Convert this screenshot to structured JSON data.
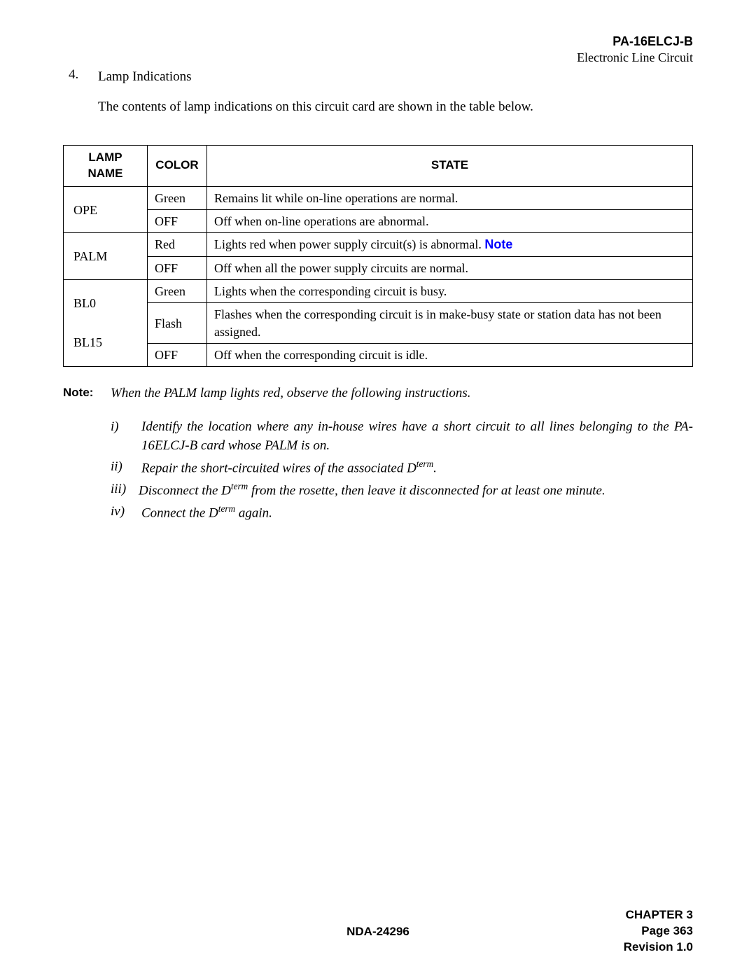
{
  "header": {
    "title": "PA-16ELCJ-B",
    "subtitle": "Electronic Line Circuit"
  },
  "section": {
    "number": "4.",
    "title": "Lamp Indications",
    "intro": "The contents of lamp indications on this circuit card are shown in the table below."
  },
  "table": {
    "columns": [
      "LAMP NAME",
      "COLOR",
      "STATE"
    ],
    "rows": [
      {
        "name": "OPE",
        "rowspan": 2,
        "color": "Green",
        "state": "Remains lit while on-line operations are normal."
      },
      {
        "color": "OFF",
        "state": "Off when on-line operations are abnormal."
      },
      {
        "name": "PALM",
        "rowspan": 2,
        "color": "Red",
        "state_prefix": "Lights red when power supply circuit(s) is abnormal. ",
        "state_link": "Note"
      },
      {
        "color": "OFF",
        "state": "Off when all the power supply circuits are normal."
      },
      {
        "name_l1": "BL0",
        "name_l2": "  ",
        "name_l3": "BL15",
        "rowspan": 3,
        "color": "Green",
        "state": "Lights when the corresponding circuit is busy."
      },
      {
        "color": "Flash",
        "state": "Flashes when the corresponding circuit is in make-busy state or station data has not been assigned."
      },
      {
        "color": "OFF",
        "state": "Off when the corresponding circuit is idle."
      }
    ]
  },
  "note": {
    "label": "Note:",
    "text": "When the PALM lamp lights red, observe the following instructions.",
    "items": [
      {
        "num": "i)",
        "text_pre": "Identify the location where any in-house wires have a short circuit to all lines belonging to the PA-16ELCJ-B card whose PALM is on.",
        "justify": true
      },
      {
        "num": "ii)",
        "text_pre": "Repair the short-circuited wires of the associated D",
        "sup": "term",
        "text_post": "."
      },
      {
        "num": "iii)",
        "text_pre": "Disconnect the D",
        "sup": "term",
        "text_post": " from the rosette, then leave it disconnected for at least one minute."
      },
      {
        "num": "iv)",
        "text_pre": "Connect the D",
        "sup": "term",
        "text_post": " again."
      }
    ]
  },
  "footer": {
    "center": "NDA-24296",
    "chapter": "CHAPTER 3",
    "page": "Page 363",
    "revision": "Revision 1.0"
  }
}
